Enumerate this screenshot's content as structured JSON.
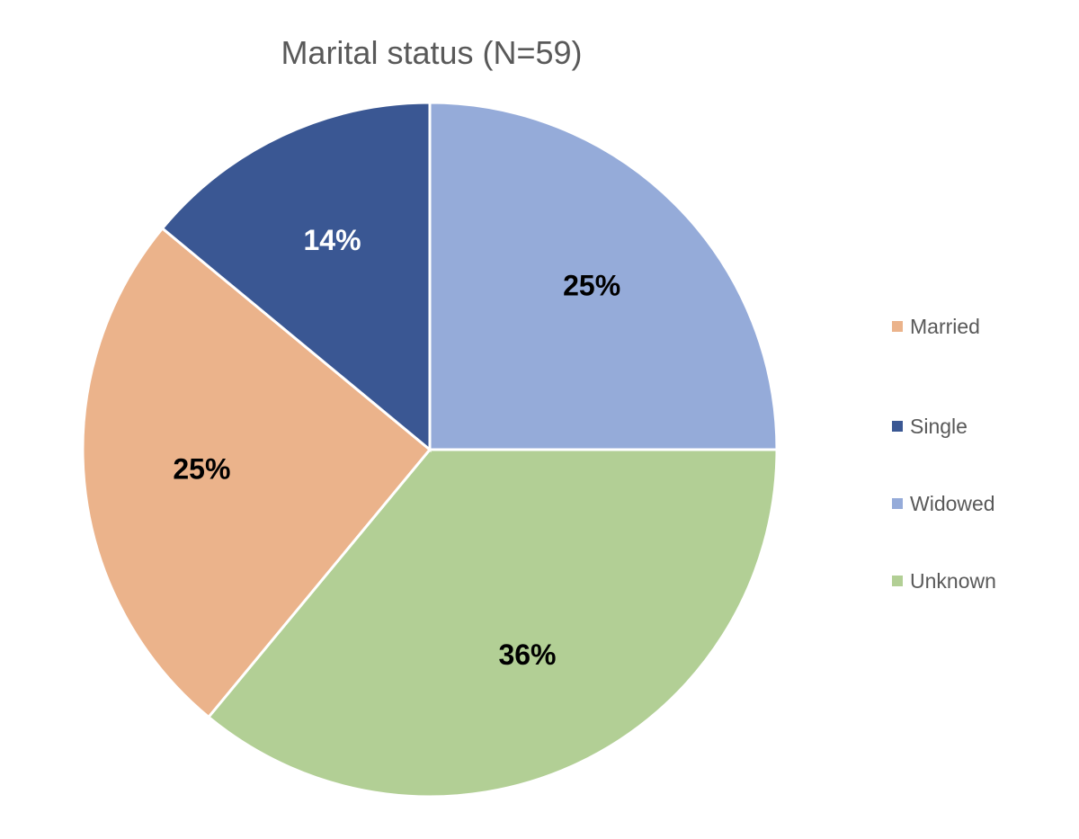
{
  "chart_data": {
    "type": "pie",
    "title": "Marital status (N=59)",
    "slices": [
      {
        "name": "Married",
        "value": 25,
        "label": "25%",
        "color": "#EBB38B",
        "label_color": "#000000"
      },
      {
        "name": "Single",
        "value": 14,
        "label": "14%",
        "color": "#3A5793",
        "label_color": "#FFFFFF"
      },
      {
        "name": "Widowed",
        "value": 25,
        "label": "25%",
        "color": "#95ABD9",
        "label_color": "#000000"
      },
      {
        "name": "Unknown",
        "value": 36,
        "label": "36%",
        "color": "#B2CF95",
        "label_color": "#000000"
      }
    ],
    "legend": {
      "placement": "right",
      "entries": [
        "Married",
        "Single",
        "Widowed",
        "Unknown"
      ]
    }
  }
}
